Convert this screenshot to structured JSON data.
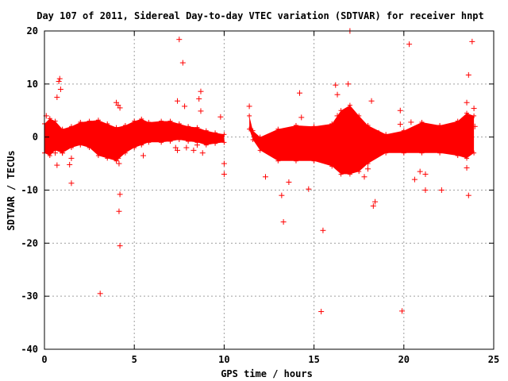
{
  "chart_data": {
    "type": "scatter",
    "title": "Day 107 of 2011, Sidereal Day-to-day VTEC variation (SDTVAR) for receiver hnpt",
    "xlabel": "GPS time / hours",
    "ylabel": "SDTVAR / TECUs",
    "xlim": [
      0,
      25
    ],
    "ylim": [
      -40,
      20
    ],
    "xticks": [
      0,
      5,
      10,
      15,
      20,
      25
    ],
    "yticks": [
      -40,
      -30,
      -20,
      -10,
      0,
      10,
      20
    ],
    "grid": true,
    "marker": "+",
    "color": "#ff0000",
    "series": [
      {
        "name": "dense band (upper envelope)",
        "points": [
          [
            0,
            2.5
          ],
          [
            0.3,
            3.5
          ],
          [
            0.6,
            3
          ],
          [
            1,
            1.5
          ],
          [
            1.5,
            2
          ],
          [
            2,
            2.8
          ],
          [
            2.5,
            3
          ],
          [
            3,
            3.2
          ],
          [
            3.5,
            2.5
          ],
          [
            4,
            1.8
          ],
          [
            4.5,
            2.2
          ],
          [
            5,
            3
          ],
          [
            5.4,
            3.4
          ],
          [
            5.8,
            2.8
          ],
          [
            6.5,
            3
          ],
          [
            7,
            3
          ],
          [
            7.5,
            2.5
          ],
          [
            8,
            2
          ],
          [
            8.5,
            1.8
          ],
          [
            9,
            1.2
          ],
          [
            9.5,
            0.8
          ],
          [
            10,
            0.5
          ],
          [
            11.4,
            4
          ],
          [
            11.6,
            1.2
          ],
          [
            12,
            0
          ],
          [
            13,
            1.5
          ],
          [
            14,
            2.2
          ],
          [
            15,
            2
          ],
          [
            16,
            2.5
          ],
          [
            16.5,
            5
          ],
          [
            17,
            6
          ],
          [
            17.5,
            4
          ],
          [
            18,
            2.2
          ],
          [
            19,
            0.5
          ],
          [
            20,
            1.2
          ],
          [
            21,
            2.8
          ],
          [
            22,
            2.2
          ],
          [
            23,
            3
          ],
          [
            23.5,
            4.5
          ],
          [
            23.9,
            4
          ]
        ]
      },
      {
        "name": "dense band (lower envelope)",
        "points": [
          [
            0,
            -3
          ],
          [
            0.3,
            -3.5
          ],
          [
            0.6,
            -2.5
          ],
          [
            1,
            -3
          ],
          [
            1.5,
            -2
          ],
          [
            2,
            -1.5
          ],
          [
            2.5,
            -2
          ],
          [
            3,
            -3.5
          ],
          [
            3.5,
            -4
          ],
          [
            4,
            -4.5
          ],
          [
            4.5,
            -3
          ],
          [
            5,
            -2
          ],
          [
            5.4,
            -1.5
          ],
          [
            5.8,
            -1
          ],
          [
            6.5,
            -1
          ],
          [
            7,
            -0.8
          ],
          [
            7.5,
            -0.5
          ],
          [
            8,
            -0.8
          ],
          [
            8.5,
            -1
          ],
          [
            9,
            -1.5
          ],
          [
            9.5,
            -1.2
          ],
          [
            10,
            -1
          ],
          [
            11.4,
            1.5
          ],
          [
            11.6,
            -0.5
          ],
          [
            12,
            -2.5
          ],
          [
            13,
            -4.5
          ],
          [
            14,
            -4.5
          ],
          [
            15,
            -4.5
          ],
          [
            16,
            -5.5
          ],
          [
            16.5,
            -7
          ],
          [
            17,
            -7
          ],
          [
            17.5,
            -6.5
          ],
          [
            18,
            -5
          ],
          [
            19,
            -3
          ],
          [
            20,
            -3
          ],
          [
            21,
            -3
          ],
          [
            22,
            -3
          ],
          [
            23,
            -3.5
          ],
          [
            23.5,
            -4
          ],
          [
            23.9,
            -3
          ]
        ]
      },
      {
        "name": "outliers",
        "points": [
          [
            0.1,
            4
          ],
          [
            0.3,
            -2
          ],
          [
            0.6,
            -3
          ],
          [
            0.7,
            -5.3
          ],
          [
            0.7,
            7.5
          ],
          [
            0.8,
            10.5
          ],
          [
            0.85,
            11
          ],
          [
            0.9,
            9
          ],
          [
            1.0,
            -3
          ],
          [
            1.4,
            -5.2
          ],
          [
            1.5,
            -8.7
          ],
          [
            1.5,
            -4
          ],
          [
            3.1,
            -29.5
          ],
          [
            4.0,
            6.5
          ],
          [
            4.1,
            6
          ],
          [
            4.2,
            5.5
          ],
          [
            4.1,
            -4
          ],
          [
            4.15,
            -5
          ],
          [
            4.2,
            -10.8
          ],
          [
            4.15,
            -14
          ],
          [
            4.2,
            -20.5
          ],
          [
            5.5,
            -3.5
          ],
          [
            7.3,
            -2
          ],
          [
            7.4,
            -2.5
          ],
          [
            7.4,
            6.8
          ],
          [
            7.5,
            18.4
          ],
          [
            7.7,
            14
          ],
          [
            7.8,
            5.8
          ],
          [
            7.9,
            -2
          ],
          [
            8.3,
            -2.5
          ],
          [
            8.5,
            -1.5
          ],
          [
            8.6,
            7.2
          ],
          [
            8.7,
            4.9
          ],
          [
            8.7,
            8.6
          ],
          [
            8.8,
            -3
          ],
          [
            9.8,
            3.8
          ],
          [
            10.0,
            -7
          ],
          [
            10.0,
            -5
          ],
          [
            11.4,
            5.8
          ],
          [
            12.3,
            -7.5
          ],
          [
            13.2,
            -11
          ],
          [
            13.3,
            -16
          ],
          [
            13.6,
            -8.5
          ],
          [
            14.2,
            8.3
          ],
          [
            14.3,
            3.7
          ],
          [
            14.7,
            -9.8
          ],
          [
            15.4,
            -32.9
          ],
          [
            15.5,
            -17.6
          ],
          [
            16.2,
            9.8
          ],
          [
            16.3,
            4
          ],
          [
            16.3,
            8
          ],
          [
            16.4,
            2
          ],
          [
            16.9,
            10
          ],
          [
            17.0,
            20
          ],
          [
            17.1,
            -2
          ],
          [
            17.8,
            -7.5
          ],
          [
            18.0,
            -6
          ],
          [
            18.2,
            6.8
          ],
          [
            18.3,
            -13
          ],
          [
            18.4,
            -12.2
          ],
          [
            18.6,
            0.8
          ],
          [
            19.8,
            5
          ],
          [
            19.8,
            2.4
          ],
          [
            19.9,
            -32.8
          ],
          [
            20.3,
            17.5
          ],
          [
            20.4,
            2.8
          ],
          [
            20.6,
            -8
          ],
          [
            20.9,
            -6.5
          ],
          [
            21.2,
            -10
          ],
          [
            21.2,
            -7
          ],
          [
            22.1,
            -10
          ],
          [
            23.5,
            6.5
          ],
          [
            23.5,
            -5.8
          ],
          [
            23.6,
            11.7
          ],
          [
            23.6,
            -11
          ],
          [
            23.8,
            18
          ],
          [
            23.9,
            5.4
          ],
          [
            23.95,
            2
          ]
        ]
      }
    ]
  }
}
